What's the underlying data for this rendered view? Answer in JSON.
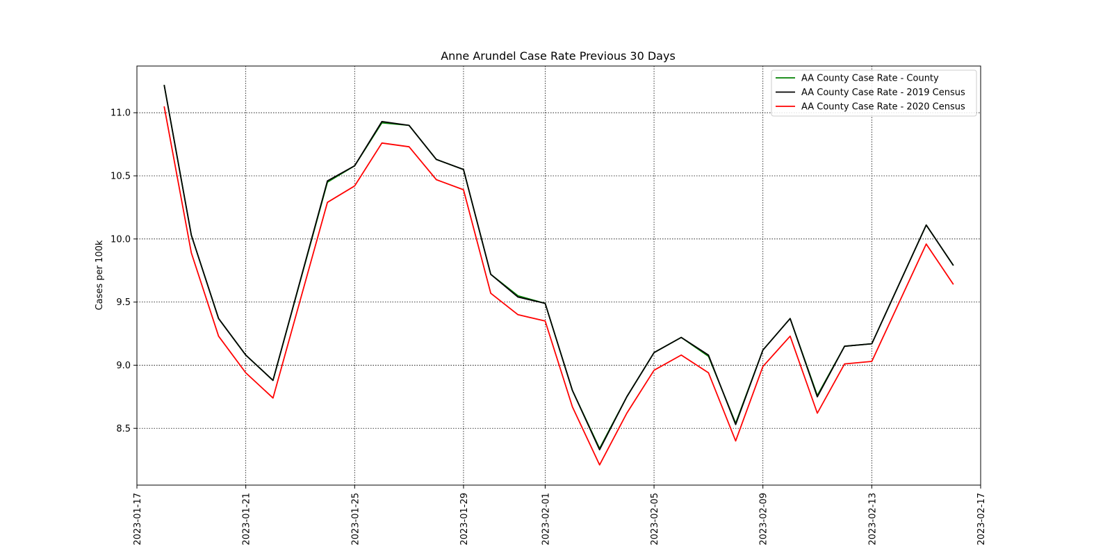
{
  "chart_data": {
    "type": "line",
    "title": "Anne Arundel Case Rate Previous 30 Days",
    "xlabel": "",
    "ylabel": "Cases per 100k",
    "x_axis_type": "date",
    "xlim": [
      "2023-01-17",
      "2023-02-17"
    ],
    "ylim": [
      8.05,
      11.37
    ],
    "grid": true,
    "grid_style": "dotted",
    "legend_position": "upper right",
    "x_ticks": [
      "2023-01-17",
      "2023-01-21",
      "2023-01-25",
      "2023-01-29",
      "2023-02-01",
      "2023-02-05",
      "2023-02-09",
      "2023-02-13",
      "2023-02-17"
    ],
    "y_ticks": [
      "8.5",
      "9.0",
      "9.5",
      "10.0",
      "10.5",
      "11.0"
    ],
    "x": [
      "2023-01-18",
      "2023-01-19",
      "2023-01-20",
      "2023-01-21",
      "2023-01-22",
      "2023-01-24",
      "2023-01-25",
      "2023-01-26",
      "2023-01-27",
      "2023-01-28",
      "2023-01-29",
      "2023-01-30",
      "2023-01-31",
      "2023-02-01",
      "2023-02-02",
      "2023-02-03",
      "2023-02-04",
      "2023-02-05",
      "2023-02-06",
      "2023-02-07",
      "2023-02-08",
      "2023-02-09",
      "2023-02-10",
      "2023-02-11",
      "2023-02-12",
      "2023-02-13",
      "2023-02-15",
      "2023-02-16"
    ],
    "series": [
      {
        "name": "AA County Case Rate - County",
        "color": "#008000",
        "values": [
          11.22,
          10.03,
          9.37,
          9.08,
          8.88,
          10.45,
          10.58,
          10.92,
          10.9,
          10.63,
          10.55,
          9.72,
          9.55,
          9.49,
          8.8,
          8.34,
          8.75,
          9.1,
          9.22,
          9.07,
          8.54,
          9.12,
          9.37,
          8.76,
          9.15,
          9.17,
          10.11,
          9.79
        ]
      },
      {
        "name": "AA County Case Rate - 2019 Census",
        "color": "#000000",
        "values": [
          11.22,
          10.03,
          9.37,
          9.08,
          8.88,
          10.46,
          10.58,
          10.93,
          10.9,
          10.63,
          10.55,
          9.72,
          9.54,
          9.49,
          8.8,
          8.33,
          8.75,
          9.1,
          9.22,
          9.08,
          8.53,
          9.12,
          9.37,
          8.75,
          9.15,
          9.17,
          10.11,
          9.79
        ]
      },
      {
        "name": "AA County Case Rate - 2020 Census",
        "color": "#ff0000",
        "values": [
          11.05,
          9.89,
          9.23,
          8.94,
          8.74,
          10.29,
          10.42,
          10.76,
          10.73,
          10.47,
          10.39,
          9.57,
          9.4,
          9.35,
          8.67,
          8.21,
          8.62,
          8.96,
          9.08,
          8.94,
          8.4,
          8.99,
          9.23,
          8.62,
          9.01,
          9.03,
          9.96,
          9.64
        ]
      }
    ]
  }
}
